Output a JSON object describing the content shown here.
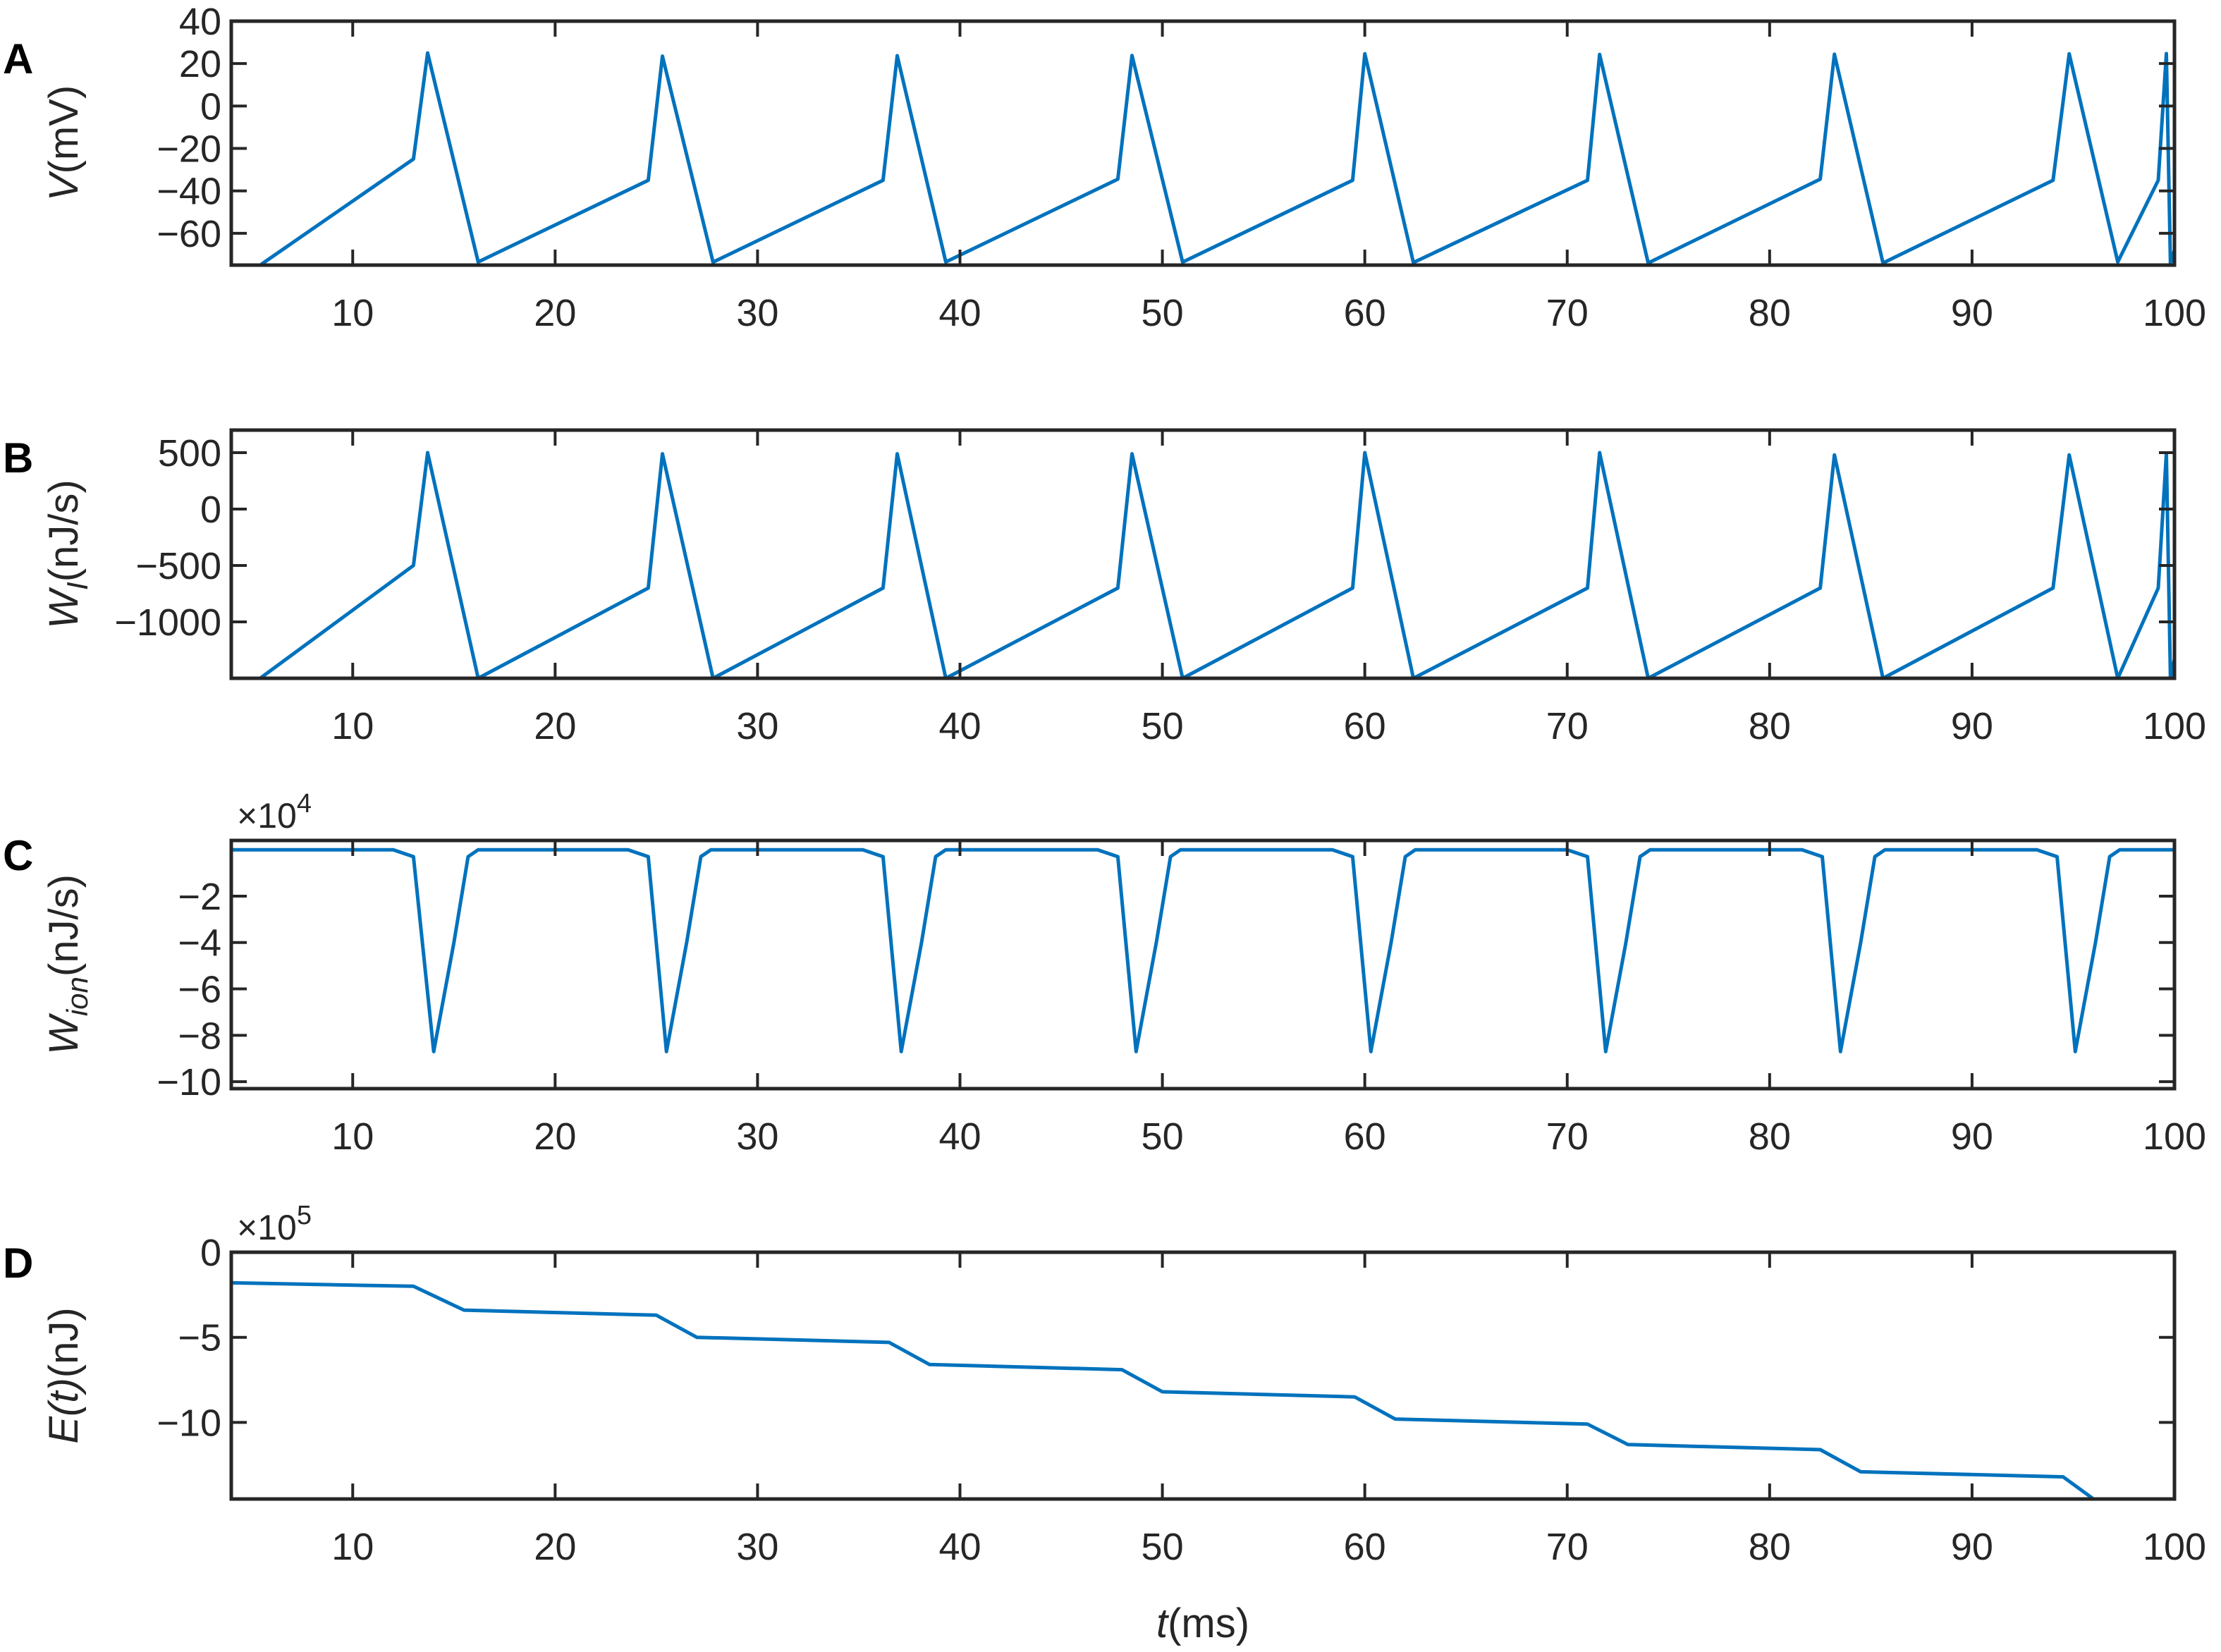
{
  "chart_data": [
    {
      "panel_label": "A",
      "type": "line",
      "ylabel_var": "V",
      "ylabel_sub": "",
      "ylabel_unit": "(mV)",
      "xlabel_var": "",
      "xlabel_unit": "",
      "multiplier_base": "",
      "multiplier_exp": "",
      "xlim": [
        4,
        100
      ],
      "ylim": [
        -75,
        40
      ],
      "xticks": [
        10,
        20,
        30,
        40,
        50,
        60,
        70,
        80,
        90,
        100
      ],
      "yticks": [
        40,
        20,
        0,
        -20,
        -40,
        -60
      ],
      "grid": false,
      "color": "#0072BD",
      "series": [
        {
          "values": [
            -74.5,
            -25,
            25,
            -73.5,
            -35,
            23.5,
            -73.6,
            -35,
            23.7,
            -73.5,
            -34.5,
            23.8,
            -73.6,
            -35,
            24.6,
            -73.8,
            -35,
            24.3,
            -74,
            -34.5,
            24.4,
            -74,
            -35,
            24.6,
            -73.5,
            -35,
            24.7,
            -74.2,
            -68
          ],
          "x": [
            5.5,
            13,
            13.7,
            16.2,
            24.6,
            25.3,
            27.8,
            36.2,
            36.9,
            39.3,
            47.8,
            48.5,
            51,
            59.4,
            60,
            62.4,
            71,
            71.6,
            74,
            82.5,
            83.2,
            85.6,
            94,
            94.8,
            97.2,
            99.2,
            99.6,
            99.8,
            100
          ]
        }
      ]
    },
    {
      "panel_label": "B",
      "type": "line",
      "ylabel_var": "W",
      "ylabel_sub": "I",
      "ylabel_unit": "(nJ/s)",
      "xlabel_var": "",
      "xlabel_unit": "",
      "multiplier_base": "",
      "multiplier_exp": "",
      "xlim": [
        4,
        100
      ],
      "ylim": [
        -1500,
        700
      ],
      "xticks": [
        10,
        20,
        30,
        40,
        50,
        60,
        70,
        80,
        90,
        100
      ],
      "yticks": [
        500,
        0,
        -500,
        -1000
      ],
      "grid": false,
      "color": "#0072BD",
      "series": [
        {
          "values": [
            -1490,
            -500,
            500,
            -1500,
            -700,
            490,
            -1500,
            -700,
            490,
            -1500,
            -700,
            490,
            -1500,
            -700,
            500,
            -1500,
            -700,
            500,
            -1500,
            -700,
            480,
            -1500,
            -700,
            480,
            -1500,
            -700,
            490,
            -1500,
            -1330
          ],
          "x": [
            5.5,
            13,
            13.7,
            16.2,
            24.6,
            25.3,
            27.8,
            36.2,
            36.9,
            39.3,
            47.8,
            48.5,
            51,
            59.4,
            60,
            62.4,
            71,
            71.6,
            74,
            82.5,
            83.2,
            85.6,
            94,
            94.8,
            97.2,
            99.2,
            99.6,
            99.8,
            100
          ]
        }
      ]
    },
    {
      "panel_label": "C",
      "type": "line",
      "ylabel_var": "W",
      "ylabel_sub": "ion",
      "ylabel_unit": "(nJ/s)",
      "xlabel_var": "",
      "xlabel_unit": "",
      "multiplier_base": "×10",
      "multiplier_exp": "4",
      "xlim": [
        4,
        100
      ],
      "ylim": [
        -10.3,
        0.4
      ],
      "xticks": [
        10,
        20,
        30,
        40,
        50,
        60,
        70,
        80,
        90,
        100
      ],
      "yticks": [
        -2,
        -4,
        -6,
        -8,
        -10
      ],
      "grid": false,
      "color": "#0072BD",
      "series": [
        {
          "x": [
            4,
            12,
            13.0,
            14.0,
            15.0,
            15.7,
            16.2,
            23.6,
            24.6,
            25.5,
            26.5,
            27.2,
            27.7,
            35.2,
            36.2,
            37.1,
            38.1,
            38.8,
            39.3,
            46.8,
            47.8,
            48.7,
            49.7,
            50.4,
            50.9,
            58.4,
            59.4,
            60.3,
            61.3,
            62.0,
            62.5,
            70.0,
            71.0,
            71.9,
            72.9,
            73.6,
            74.1,
            81.6,
            82.6,
            83.5,
            84.5,
            85.2,
            85.7,
            93.2,
            94.2,
            95.1,
            96.1,
            96.8,
            97.3,
            100
          ],
          "values": [
            0,
            0,
            -0.3,
            -8.7,
            -4,
            -0.3,
            0,
            0,
            -0.3,
            -8.7,
            -4,
            -0.3,
            0,
            0,
            -0.3,
            -8.7,
            -4,
            -0.3,
            0,
            0,
            -0.3,
            -8.7,
            -4,
            -0.3,
            0,
            0,
            -0.3,
            -8.7,
            -4,
            -0.3,
            0,
            0,
            -0.3,
            -8.7,
            -4,
            -0.3,
            0,
            0,
            -0.3,
            -8.7,
            -4,
            -0.3,
            0,
            0,
            -0.3,
            -8.7,
            -4,
            -0.3,
            0,
            0
          ]
        }
      ]
    },
    {
      "panel_label": "D",
      "type": "line",
      "ylabel_var": "E(t)",
      "ylabel_sub": "",
      "ylabel_unit": "(nJ)",
      "xlabel_var": "t",
      "xlabel_unit": "(ms)",
      "multiplier_base": "×10",
      "multiplier_exp": "5",
      "xlim": [
        4,
        100
      ],
      "ylim": [
        -14.5,
        0
      ],
      "xticks": [
        10,
        20,
        30,
        40,
        50,
        60,
        70,
        80,
        90,
        100
      ],
      "yticks": [
        0,
        -5,
        -10
      ],
      "grid": false,
      "color": "#0072BD",
      "series": [
        {
          "x": [
            4,
            13,
            15.5,
            25,
            27,
            36.5,
            38.5,
            48,
            50,
            59.5,
            61.5,
            71,
            73,
            82.5,
            84.5,
            94.5,
            96,
            100
          ],
          "values": [
            -1.8,
            -2.0,
            -3.4,
            -3.7,
            -5.0,
            -5.3,
            -6.6,
            -6.9,
            -8.2,
            -8.5,
            -9.8,
            -10.1,
            -11.3,
            -11.6,
            -12.9,
            -13.2,
            -14.5,
            -14.5
          ]
        }
      ]
    }
  ]
}
